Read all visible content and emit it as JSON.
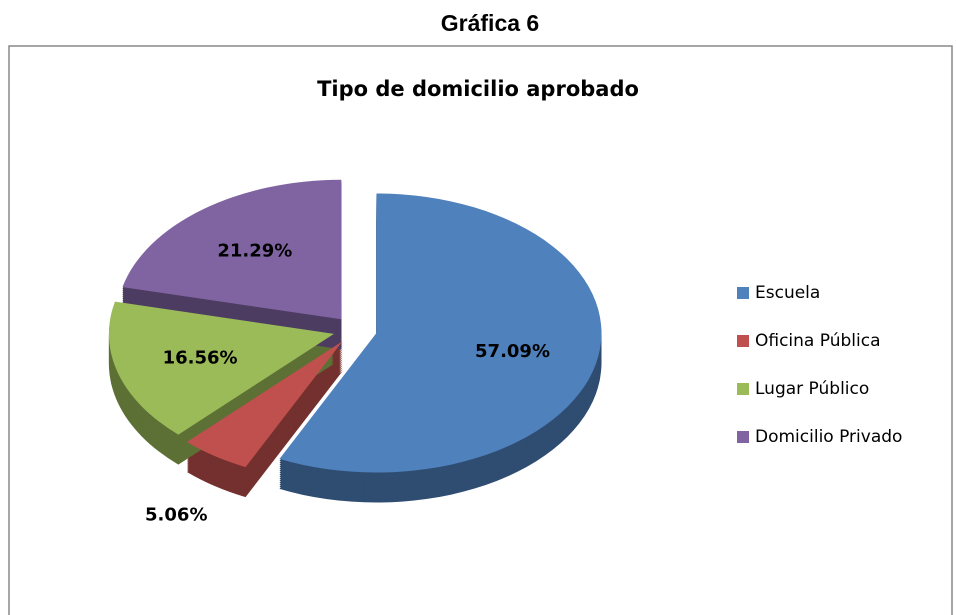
{
  "header": {
    "title": "Gráfica 6"
  },
  "chart_data": {
    "type": "pie",
    "title": "Tipo de domicilio aprobado",
    "categories": [
      "Escuela",
      "Oficina Pública",
      "Lugar Público",
      "Domicilio Privado"
    ],
    "values": [
      57.09,
      5.06,
      16.56,
      21.29
    ],
    "value_labels": [
      "57.09%",
      "5.06%",
      "16.56%",
      "21.29%"
    ],
    "colors": [
      "#4f81bd",
      "#c0504d",
      "#9bbb59",
      "#8064a2"
    ],
    "legend": "right"
  }
}
